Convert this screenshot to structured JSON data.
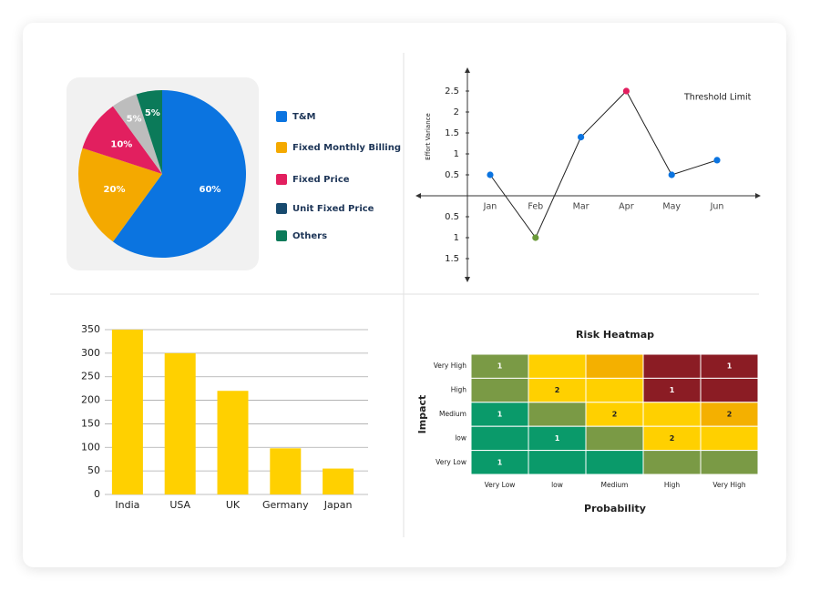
{
  "chart_data": [
    {
      "type": "pie",
      "categories": [
        "T&M",
        "Fixed Monthly Billing",
        "Fixed Price",
        "Unit Fixed Price",
        "Others"
      ],
      "values": [
        60,
        20,
        10,
        5,
        5
      ],
      "value_labels": [
        "60%",
        "20%",
        "10%",
        "5%",
        "5%"
      ],
      "colors": [
        "#0b74e0",
        "#f4a900",
        "#e21f5f",
        "#bdbdbd",
        "#0b7a59"
      ],
      "legend_colors": [
        "#0b74e0",
        "#f4a900",
        "#e21f5f",
        "#174a6e",
        "#0b7a59"
      ]
    },
    {
      "type": "line",
      "y_label": "Effort Variance",
      "annotation": "Threshold Limit",
      "categories": [
        "Jan",
        "Feb",
        "Mar",
        "Apr",
        "May",
        "Jun"
      ],
      "values": [
        0.5,
        -1,
        1.4,
        2.5,
        0.5,
        0.85
      ],
      "point_colors": [
        "#0b74e0",
        "#6a9a3a",
        "#0b74e0",
        "#e21f5f",
        "#0b74e0",
        "#0b74e0"
      ],
      "color": "#222222",
      "ylim": [
        -2,
        3
      ],
      "yticks": [
        {
          "value": -1.5,
          "label": "1.5"
        },
        {
          "value": -1,
          "label": "1"
        },
        {
          "value": -0.5,
          "label": "0.5"
        },
        0.5,
        1,
        1.5,
        2,
        2.5
      ]
    },
    {
      "type": "bar",
      "categories": [
        "India",
        "USA",
        "UK",
        "Germany",
        "Japan"
      ],
      "values": [
        350,
        300,
        220,
        98,
        55
      ],
      "color": "#ffd000",
      "ylim": [
        0,
        350
      ],
      "yticks": [
        0,
        50,
        100,
        150,
        200,
        250,
        300,
        350
      ],
      "grid": true
    },
    {
      "type": "heatmap",
      "title": "Risk Heatmap",
      "x_label": "Probability",
      "y_label": "Impact",
      "x_categories": [
        "Very Low",
        "low",
        "Medium",
        "High",
        "Very High"
      ],
      "y_categories": [
        "Very High",
        "High",
        "Medium",
        "low",
        "Very Low"
      ],
      "values": [
        [
          1,
          null,
          null,
          null,
          1
        ],
        [
          null,
          2,
          null,
          1,
          null
        ],
        [
          1,
          null,
          2,
          null,
          2
        ],
        [
          null,
          1,
          null,
          2,
          null
        ],
        [
          1,
          null,
          null,
          null,
          null
        ]
      ],
      "cell_colors": [
        [
          "#7a9a45",
          "#ffd000",
          "#f4b000",
          "#8b1c24",
          "#8b1c24"
        ],
        [
          "#7a9a45",
          "#ffd000",
          "#ffd000",
          "#8b1c24",
          "#8b1c24"
        ],
        [
          "#0a9a6a",
          "#7a9a45",
          "#ffd000",
          "#ffd000",
          "#f4b000"
        ],
        [
          "#0a9a6a",
          "#0a9a6a",
          "#7a9a45",
          "#ffd000",
          "#ffd000"
        ],
        [
          "#0a9a6a",
          "#0a9a6a",
          "#0a9a6a",
          "#7a9a45",
          "#7a9a45"
        ]
      ]
    }
  ]
}
